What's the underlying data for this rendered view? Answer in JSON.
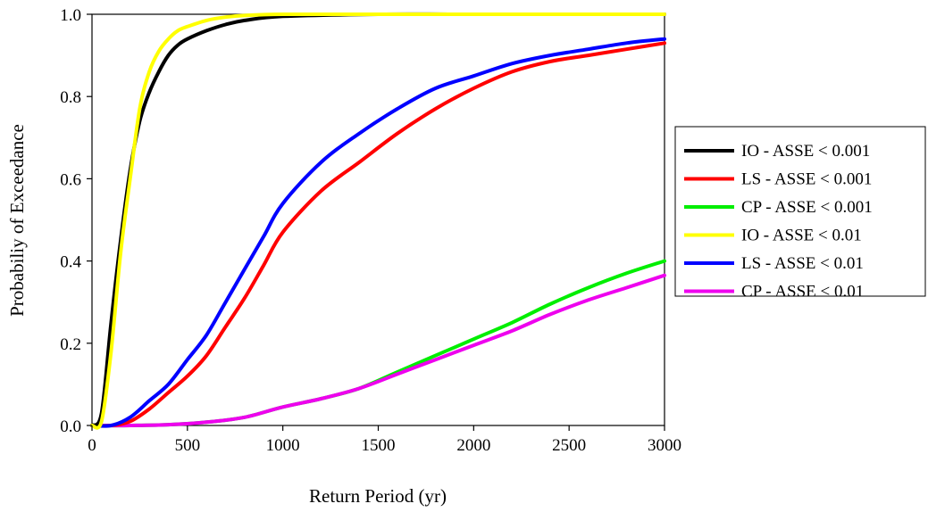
{
  "chart_data": {
    "type": "line",
    "title": "",
    "xlabel": "Return Period (yr)",
    "ylabel": "Probabiliy of Exceedance",
    "xlim": [
      0,
      3000
    ],
    "ylim": [
      0,
      1.0
    ],
    "xticks": [
      "0",
      "500",
      "1000",
      "1500",
      "2000",
      "2500",
      "3000"
    ],
    "yticks": [
      "0.0",
      "0.2",
      "0.4",
      "0.6",
      "0.8",
      "1.0"
    ],
    "grid": false,
    "legend_position": "right",
    "series": [
      {
        "name": "IO - ASSE < 0.001",
        "color": "#000000",
        "x": [
          0,
          50,
          100,
          150,
          200,
          250,
          300,
          350,
          400,
          450,
          500,
          600,
          700,
          800,
          1000,
          1500,
          2000,
          3000
        ],
        "y": [
          0,
          0.03,
          0.25,
          0.45,
          0.62,
          0.74,
          0.81,
          0.86,
          0.9,
          0.925,
          0.94,
          0.96,
          0.975,
          0.985,
          0.995,
          1.0,
          1.0,
          1.0
        ]
      },
      {
        "name": "LS - ASSE < 0.001",
        "color": "#ff0000",
        "x": [
          0,
          100,
          200,
          300,
          400,
          500,
          600,
          700,
          800,
          900,
          1000,
          1200,
          1400,
          1600,
          1800,
          2000,
          2200,
          2400,
          2600,
          2800,
          3000
        ],
        "y": [
          0,
          0,
          0.01,
          0.04,
          0.08,
          0.12,
          0.17,
          0.24,
          0.31,
          0.39,
          0.47,
          0.57,
          0.64,
          0.71,
          0.77,
          0.82,
          0.86,
          0.885,
          0.9,
          0.915,
          0.93
        ]
      },
      {
        "name": "CP - ASSE < 0.001",
        "color": "#00ee00",
        "x": [
          0,
          200,
          400,
          600,
          800,
          1000,
          1200,
          1400,
          1600,
          1800,
          2000,
          2200,
          2400,
          2600,
          2800,
          3000
        ],
        "y": [
          0,
          0,
          0.002,
          0.008,
          0.02,
          0.045,
          0.065,
          0.09,
          0.13,
          0.17,
          0.21,
          0.25,
          0.295,
          0.335,
          0.37,
          0.4
        ]
      },
      {
        "name": "IO -  ASSE < 0.01",
        "color": "#ffff00",
        "x": [
          0,
          50,
          100,
          150,
          200,
          250,
          300,
          350,
          400,
          450,
          500,
          600,
          700,
          800,
          1000,
          1500,
          2000,
          3000
        ],
        "y": [
          0,
          0.01,
          0.18,
          0.42,
          0.6,
          0.77,
          0.86,
          0.91,
          0.94,
          0.96,
          0.97,
          0.985,
          0.993,
          0.997,
          1.0,
          1.0,
          1.0,
          1.0
        ]
      },
      {
        "name": "LS -  ASSE < 0.01",
        "color": "#0000ff",
        "x": [
          0,
          100,
          200,
          300,
          400,
          500,
          600,
          700,
          800,
          900,
          1000,
          1200,
          1400,
          1600,
          1800,
          2000,
          2200,
          2400,
          2600,
          2800,
          3000
        ],
        "y": [
          0,
          0,
          0.02,
          0.06,
          0.1,
          0.16,
          0.22,
          0.3,
          0.38,
          0.46,
          0.54,
          0.64,
          0.71,
          0.77,
          0.82,
          0.85,
          0.88,
          0.9,
          0.915,
          0.93,
          0.94
        ]
      },
      {
        "name": "CP -  ASSE < 0.01",
        "color": "#ee00ee",
        "x": [
          0,
          200,
          400,
          600,
          800,
          1000,
          1200,
          1400,
          1600,
          1800,
          2000,
          2200,
          2400,
          2600,
          2800,
          3000
        ],
        "y": [
          0,
          0,
          0.002,
          0.008,
          0.02,
          0.045,
          0.065,
          0.09,
          0.125,
          0.16,
          0.195,
          0.23,
          0.27,
          0.305,
          0.335,
          0.365
        ]
      }
    ]
  }
}
